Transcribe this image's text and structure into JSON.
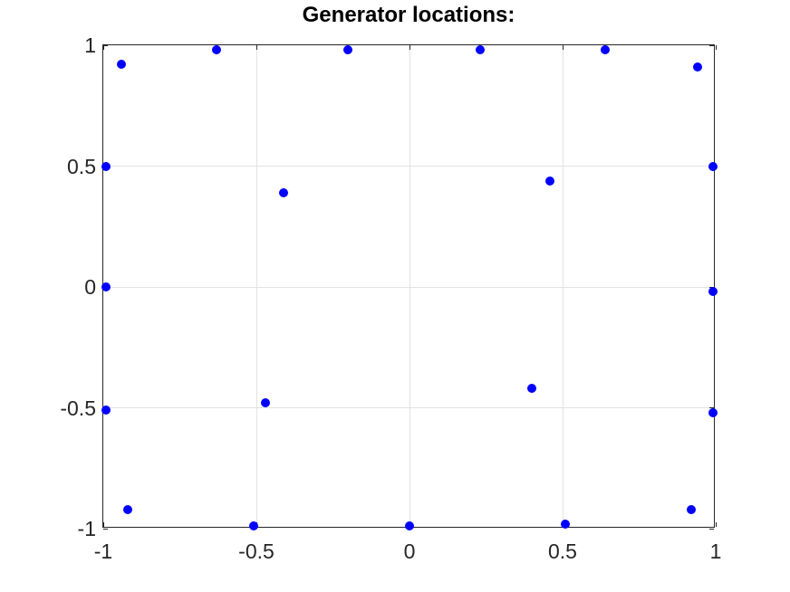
{
  "chart_data": {
    "type": "scatter",
    "title": "Generator locations:",
    "xlabel": "",
    "ylabel": "",
    "xlim": [
      -1,
      1
    ],
    "ylim": [
      -1,
      1
    ],
    "xticks": [
      -1,
      -0.5,
      0,
      0.5,
      1
    ],
    "yticks": [
      -1,
      -0.5,
      0,
      0.5,
      1
    ],
    "xtick_labels": [
      "-1",
      "-0.5",
      "0",
      "0.5",
      "1"
    ],
    "ytick_labels": [
      "-1",
      "-0.5",
      "0",
      "0.5",
      "1"
    ],
    "grid": true,
    "legend": false,
    "marker": "filled-circle",
    "marker_color": "#0000ff",
    "points": [
      [
        -0.94,
        0.92
      ],
      [
        -0.63,
        0.98
      ],
      [
        -0.2,
        0.98
      ],
      [
        0.23,
        0.98
      ],
      [
        0.64,
        0.98
      ],
      [
        0.94,
        0.91
      ],
      [
        -0.99,
        0.5
      ],
      [
        0.99,
        0.5
      ],
      [
        -0.41,
        0.39
      ],
      [
        0.46,
        0.44
      ],
      [
        -0.99,
        0.0
      ],
      [
        0.99,
        -0.02
      ],
      [
        -0.47,
        -0.48
      ],
      [
        0.4,
        -0.42
      ],
      [
        -0.99,
        -0.51
      ],
      [
        0.99,
        -0.52
      ],
      [
        -0.92,
        -0.92
      ],
      [
        0.92,
        -0.92
      ],
      [
        -0.51,
        -0.99
      ],
      [
        0.0,
        -0.99
      ],
      [
        0.51,
        -0.98
      ]
    ]
  },
  "colors": {
    "axis": "#262626",
    "grid": "#e2e2e2",
    "title": "#000000",
    "background": "#ffffff",
    "marker": "#0000ff"
  }
}
